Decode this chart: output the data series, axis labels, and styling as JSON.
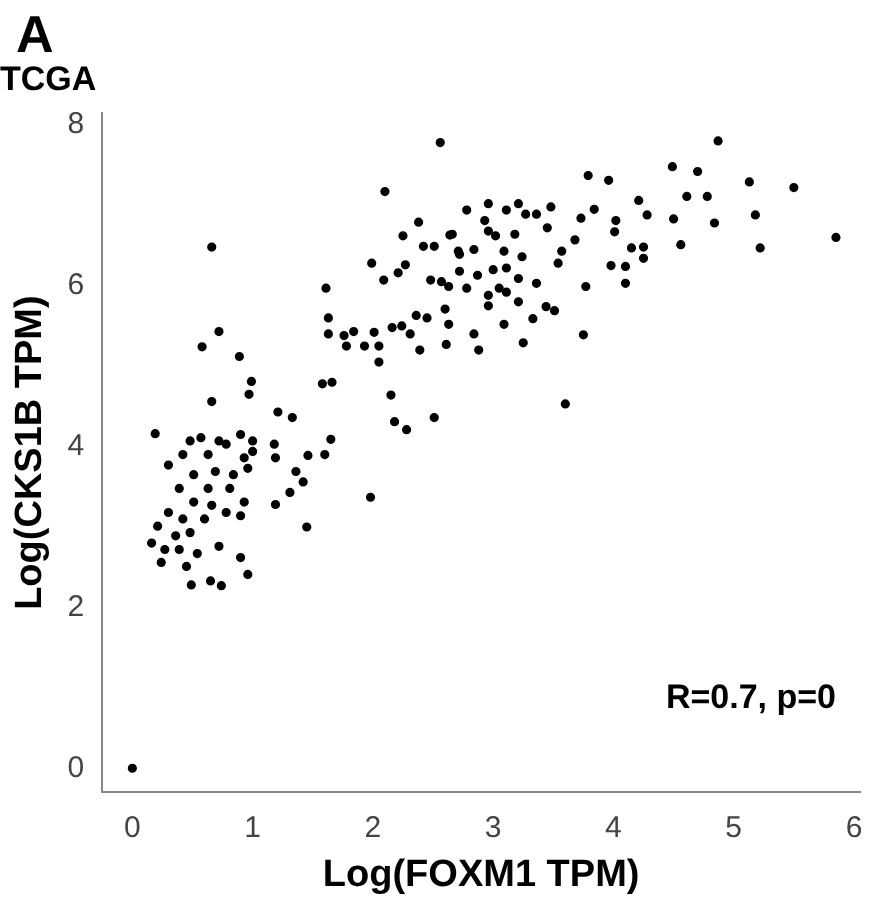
{
  "chart_data": {
    "type": "scatter",
    "title": "TCGA",
    "xlabel": "Log(FOXM1 TPM)",
    "ylabel": "Log(CKS1B TPM)",
    "annotations": [
      "A",
      "R=0.7, p=0"
    ],
    "xlim": [
      -0.25,
      6.05
    ],
    "ylim": [
      -0.3,
      8.15
    ],
    "xticks": [
      0,
      1,
      2,
      3,
      4,
      5,
      6
    ],
    "yticks": [
      0,
      2,
      4,
      6,
      8
    ],
    "grid": false,
    "legend": false,
    "marker": "circle",
    "series": [
      {
        "color": "#000000",
        "x": [
          0,
          0.19,
          0.16,
          0.24,
          0.49,
          0.65,
          0.74,
          0.96,
          0.9,
          1.45,
          1.98,
          1.19,
          1.31,
          1.42,
          1.36,
          1.46,
          1.65,
          1.6,
          1.18,
          1.19,
          2.28,
          0.3,
          0.42,
          0.63,
          0.78,
          0.9,
          1.0,
          0.96,
          0.81,
          0.63,
          0.39,
          0.3,
          0.21,
          0.42,
          0.6,
          0.78,
          0.9,
          0.93,
          0.27,
          0.39,
          0.54,
          0.72,
          0.45,
          0.36,
          0.48,
          0.66,
          0.51,
          0.69,
          0.51,
          0.84,
          0.93,
          1.0,
          0.48,
          0.57,
          0.72,
          2.56,
          0.66,
          2.1,
          1.61,
          0.72,
          0.58,
          0.89,
          0.99,
          0.97,
          0.66,
          1.21,
          1.33,
          1.58,
          1.66,
          2.15,
          2.18,
          2.51,
          1.63,
          1.63,
          1.76,
          1.84,
          1.78,
          1.93,
          2.05,
          2.01,
          2.05,
          2.16,
          2.24,
          2.31,
          2.36,
          2.45,
          2.39,
          2.61,
          2.63,
          2.6,
          1.99,
          2.09,
          2.21,
          2.27,
          2.25,
          2.38,
          2.42,
          2.51,
          2.64,
          2.48,
          2.57,
          2.63,
          2.71,
          2.72,
          4.87,
          3.79,
          3.96,
          4.49,
          4.7,
          5.13,
          5.5,
          5.85,
          5.22,
          5.18,
          4.84,
          4.78,
          4.61,
          4.56,
          4.5,
          4.28,
          4.21,
          4.25,
          4.15,
          4.25,
          4.1,
          4.1,
          3.98,
          4.01,
          4.02,
          3.84,
          3.73,
          3.68,
          3.77,
          3.75,
          3.6,
          3.51,
          3.44,
          3.33,
          3.25,
          3.09,
          2.88,
          2.84,
          3.57,
          3.54,
          3.36,
          3.21,
          3.05,
          2.96,
          2.78,
          2.72,
          2.84,
          2.96,
          2.93,
          2.96,
          3.11,
          3.21,
          3.27,
          3.36,
          3.48,
          3.45,
          3.18,
          3.02,
          3.24,
          3.09,
          3.11,
          3.0,
          2.87,
          2.66,
          2.78,
          2.96,
          3.11,
          3.21
        ],
        "values": [
          0,
          4.16,
          2.8,
          2.56,
          2.28,
          2.33,
          2.27,
          2.41,
          2.62,
          3.0,
          3.37,
          3.28,
          3.43,
          3.56,
          3.69,
          3.89,
          4.09,
          3.9,
          4.03,
          3.86,
          4.21,
          3.77,
          3.9,
          3.9,
          4.03,
          4.15,
          3.94,
          3.73,
          3.48,
          3.48,
          3.48,
          3.18,
          3.01,
          3.1,
          3.1,
          3.18,
          3.14,
          3.31,
          2.72,
          2.72,
          2.67,
          2.76,
          2.51,
          2.89,
          2.93,
          3.27,
          3.31,
          3.69,
          3.65,
          3.65,
          3.86,
          4.07,
          4.07,
          4.11,
          4.07,
          7.78,
          6.48,
          7.17,
          5.97,
          5.43,
          5.24,
          5.12,
          4.81,
          4.65,
          4.56,
          4.43,
          4.36,
          4.78,
          4.8,
          4.64,
          4.31,
          4.36,
          5.6,
          5.4,
          5.38,
          5.43,
          5.25,
          5.25,
          5.25,
          5.42,
          5.05,
          5.48,
          5.5,
          5.4,
          5.63,
          5.6,
          5.2,
          5.27,
          5.52,
          5.71,
          6.28,
          6.07,
          6.16,
          6.26,
          6.62,
          6.79,
          6.49,
          6.49,
          6.63,
          6.07,
          6.05,
          5.99,
          6.43,
          6.18,
          7.8,
          7.37,
          7.31,
          7.48,
          7.42,
          7.29,
          7.22,
          6.6,
          6.47,
          6.88,
          6.78,
          7.11,
          7.11,
          6.51,
          6.83,
          6.88,
          7.06,
          6.48,
          6.47,
          6.34,
          6.03,
          6.24,
          6.25,
          6.67,
          6.81,
          6.95,
          6.84,
          6.57,
          5.99,
          5.39,
          4.53,
          5.69,
          5.74,
          5.59,
          5.29,
          5.52,
          5.2,
          5.4,
          6.43,
          6.28,
          6.03,
          6.09,
          5.97,
          5.75,
          5.97,
          6.39,
          6.45,
          6.68,
          6.81,
          7.02,
          6.94,
          7.02,
          6.89,
          6.89,
          6.98,
          6.72,
          6.64,
          6.62,
          6.36,
          6.43,
          6.22,
          6.2,
          6.13,
          6.64,
          6.94,
          5.88,
          5.92,
          5.8
        ]
      }
    ]
  }
}
